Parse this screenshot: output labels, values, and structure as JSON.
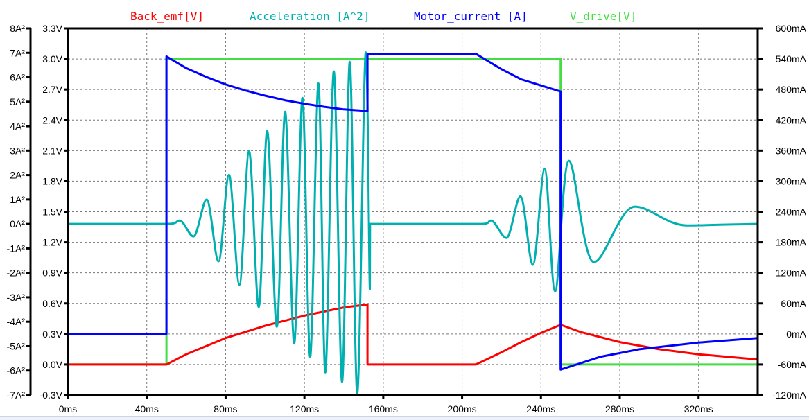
{
  "chart_data": {
    "type": "line",
    "title": "",
    "x_axis": {
      "unit": "ms",
      "range": [
        0,
        350
      ],
      "ticks": [
        "0ms",
        "40ms",
        "80ms",
        "120ms",
        "160ms",
        "200ms",
        "240ms",
        "280ms",
        "320ms"
      ],
      "tick_values": [
        0,
        40,
        80,
        120,
        160,
        200,
        240,
        280,
        320
      ]
    },
    "y_axis_left_volts": {
      "range": [
        -0.3,
        3.3
      ],
      "ticks": [
        "3.3V",
        "3.0V",
        "2.7V",
        "2.4V",
        "2.1V",
        "1.8V",
        "1.5V",
        "1.2V",
        "0.9V",
        "0.6V",
        "0.3V",
        "0.0V",
        "-0.3V"
      ]
    },
    "y_axis_left_accel": {
      "range": [
        -7,
        8
      ],
      "ticks": [
        "8A²",
        "7A²",
        "6A²",
        "5A²",
        "4A²",
        "3A²",
        "2A²",
        "1A²",
        "0A²",
        "-1A²",
        "-2A²",
        "-3A²",
        "-4A²",
        "-5A²",
        "-6A²",
        "-7A²"
      ]
    },
    "y_axis_right_current": {
      "range": [
        -120,
        600
      ],
      "ticks": [
        "600mA",
        "540mA",
        "480mA",
        "420mA",
        "360mA",
        "300mA",
        "240mA",
        "180mA",
        "120mA",
        "60mA",
        "0mA",
        "-60mA",
        "-120mA"
      ]
    },
    "grid": true,
    "legend_placement": "top",
    "series": [
      {
        "name": "Back_emf[V]",
        "axis": "volts",
        "color": "#ff0000",
        "points": [
          [
            0,
            0
          ],
          [
            50,
            0
          ],
          [
            60,
            0.1
          ],
          [
            70,
            0.18
          ],
          [
            80,
            0.26
          ],
          [
            90,
            0.32
          ],
          [
            100,
            0.38
          ],
          [
            110,
            0.43
          ],
          [
            120,
            0.48
          ],
          [
            130,
            0.52
          ],
          [
            140,
            0.56
          ],
          [
            152,
            0.59
          ],
          [
            152,
            0
          ],
          [
            207,
            0
          ],
          [
            220,
            0.12
          ],
          [
            230,
            0.22
          ],
          [
            240,
            0.31
          ],
          [
            250,
            0.39
          ],
          [
            260,
            0.32
          ],
          [
            280,
            0.22
          ],
          [
            300,
            0.15
          ],
          [
            320,
            0.1
          ],
          [
            350,
            0.05
          ]
        ]
      },
      {
        "name": "Acceleration [A^2]",
        "axis": "accel",
        "color": "#00b0b0",
        "smooth": true,
        "points": [
          [
            0,
            0
          ],
          [
            50,
            0
          ],
          [
            56.7,
            0.14
          ],
          [
            63.7,
            -0.51
          ],
          [
            70.4,
            1.0
          ],
          [
            76.4,
            -1.53
          ],
          [
            81.7,
            2.01
          ],
          [
            87.0,
            -2.49
          ],
          [
            91.9,
            2.98
          ],
          [
            96.8,
            -3.4
          ],
          [
            101.1,
            3.8
          ],
          [
            106.0,
            -4.2
          ],
          [
            110.2,
            4.59
          ],
          [
            114.8,
            -4.88
          ],
          [
            119.0,
            5.16
          ],
          [
            122.9,
            -5.44
          ],
          [
            127.1,
            5.75
          ],
          [
            130.6,
            -6.07
          ],
          [
            134.9,
            6.24
          ],
          [
            139.1,
            -6.46
          ],
          [
            143.0,
            6.63
          ],
          [
            146.8,
            -6.92
          ],
          [
            151.1,
            7.02
          ],
          [
            153.2,
            -2.66
          ],
          [
            153.3,
            0
          ],
          [
            209.9,
            0
          ],
          [
            214.8,
            0.14
          ],
          [
            222.5,
            -0.57
          ],
          [
            229.6,
            1.13
          ],
          [
            235.9,
            -1.67
          ],
          [
            241.9,
            2.24
          ],
          [
            247.2,
            -2.75
          ],
          [
            254.2,
            2.58
          ],
          [
            266.9,
            -1.56
          ],
          [
            287.7,
            0.71
          ],
          [
            314.1,
            -0.06
          ],
          [
            350,
            0
          ]
        ]
      },
      {
        "name": "Motor_current [A]",
        "axis": "current",
        "color": "#0000ff",
        "points": [
          [
            0,
            0
          ],
          [
            50,
            0
          ],
          [
            50,
            545
          ],
          [
            60,
            522
          ],
          [
            70,
            505
          ],
          [
            80,
            490
          ],
          [
            90,
            478
          ],
          [
            100,
            468
          ],
          [
            110,
            459
          ],
          [
            120,
            452
          ],
          [
            130,
            446
          ],
          [
            140,
            441
          ],
          [
            152,
            438
          ],
          [
            152,
            550
          ],
          [
            207,
            550
          ],
          [
            220,
            520
          ],
          [
            230,
            500
          ],
          [
            240,
            488
          ],
          [
            250,
            476
          ],
          [
            250,
            -70
          ],
          [
            270,
            -45
          ],
          [
            290,
            -30
          ],
          [
            320,
            -17
          ],
          [
            350,
            -8
          ]
        ]
      },
      {
        "name": "V_drive[V]",
        "axis": "volts",
        "color": "#44dd44",
        "points": [
          [
            0,
            0
          ],
          [
            50,
            0
          ],
          [
            50,
            3.0
          ],
          [
            250,
            3.0
          ],
          [
            250,
            0
          ],
          [
            350,
            0
          ]
        ]
      }
    ]
  }
}
